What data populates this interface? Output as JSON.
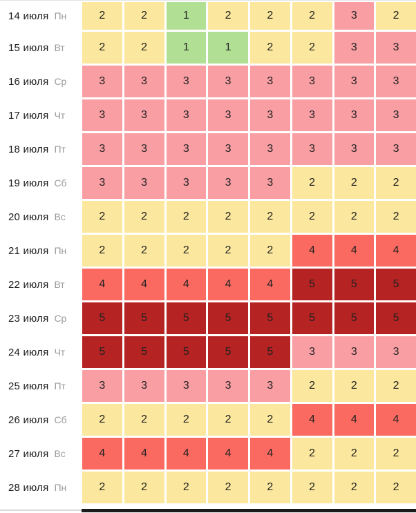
{
  "chart_data": {
    "type": "heatmap",
    "columns": 8,
    "value_scale": [
      1,
      2,
      3,
      4,
      5
    ],
    "value_colors": {
      "1": "#b1e095",
      "2": "#fbe79d",
      "3": "#f99ea3",
      "4": "#fa6a60",
      "5": "#b52322"
    },
    "rows": [
      {
        "date": "14 июля",
        "weekday": "Пн",
        "values": [
          2,
          2,
          1,
          2,
          2,
          2,
          3,
          2
        ]
      },
      {
        "date": "15 июля",
        "weekday": "Вт",
        "values": [
          2,
          2,
          1,
          1,
          2,
          2,
          3,
          3
        ]
      },
      {
        "date": "16 июля",
        "weekday": "Ср",
        "values": [
          3,
          3,
          3,
          3,
          3,
          3,
          3,
          3
        ]
      },
      {
        "date": "17 июля",
        "weekday": "Чт",
        "values": [
          3,
          3,
          3,
          3,
          3,
          3,
          3,
          3
        ]
      },
      {
        "date": "18 июля",
        "weekday": "Пт",
        "values": [
          3,
          3,
          3,
          3,
          3,
          3,
          3,
          3
        ]
      },
      {
        "date": "19 июля",
        "weekday": "Сб",
        "values": [
          3,
          3,
          3,
          3,
          3,
          2,
          2,
          2
        ]
      },
      {
        "date": "20 июля",
        "weekday": "Вс",
        "values": [
          2,
          2,
          2,
          2,
          2,
          2,
          2,
          2
        ]
      },
      {
        "date": "21 июля",
        "weekday": "Пн",
        "values": [
          2,
          2,
          2,
          2,
          2,
          4,
          4,
          4
        ]
      },
      {
        "date": "22 июля",
        "weekday": "Вт",
        "values": [
          4,
          4,
          4,
          4,
          4,
          5,
          5,
          5
        ]
      },
      {
        "date": "23 июля",
        "weekday": "Ср",
        "values": [
          5,
          5,
          5,
          5,
          5,
          5,
          5,
          5
        ]
      },
      {
        "date": "24 июля",
        "weekday": "Чт",
        "values": [
          5,
          5,
          5,
          5,
          5,
          3,
          3,
          3
        ]
      },
      {
        "date": "25 июля",
        "weekday": "Пт",
        "values": [
          3,
          3,
          3,
          3,
          3,
          2,
          2,
          2
        ]
      },
      {
        "date": "26 июля",
        "weekday": "Сб",
        "values": [
          2,
          2,
          2,
          2,
          2,
          4,
          4,
          4
        ]
      },
      {
        "date": "27 июля",
        "weekday": "Вс",
        "values": [
          4,
          4,
          4,
          4,
          4,
          2,
          2,
          2
        ]
      },
      {
        "date": "28 июля",
        "weekday": "Пн",
        "values": [
          2,
          2,
          2,
          2,
          2,
          2,
          2,
          2
        ]
      }
    ]
  },
  "colors": {
    "background": "#ffffff",
    "date_text": "#1a1a1a",
    "weekday_text": "#9a9a9a",
    "cell_text": "#222222",
    "top_border": "#e4e4e4",
    "divider_track": "#d8d8d8",
    "divider_bar": "#1b1b1b"
  }
}
